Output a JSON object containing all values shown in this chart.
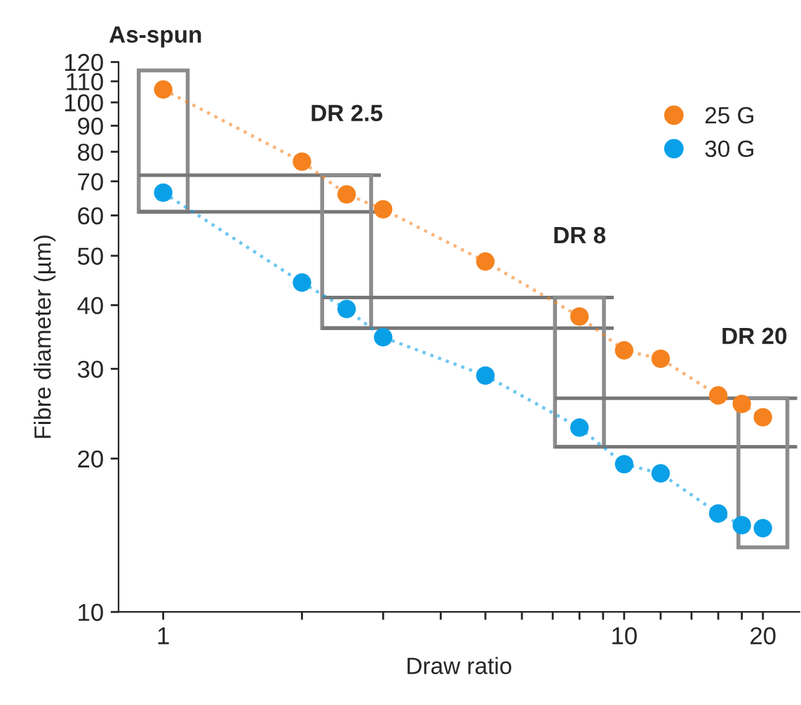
{
  "chart_data": {
    "type": "line",
    "xlabel": "Draw ratio",
    "ylabel": "Fibre diameter (µm)",
    "annotations": [
      "As-spun",
      "DR 2.5",
      "DR 8",
      "DR 20"
    ],
    "x": [
      1,
      2,
      2.5,
      3,
      5,
      8,
      10,
      12,
      16,
      18,
      20
    ],
    "series": [
      {
        "name": "25 G",
        "color": "#f5821f",
        "values": [
          106,
          76.5,
          66,
          61.7,
          48.7,
          38,
          32.6,
          31.4,
          26.6,
          25.6,
          24.1
        ]
      },
      {
        "name": "30 G",
        "color": "#0aa0e8",
        "values": [
          66.5,
          44.3,
          39.3,
          34.6,
          29.1,
          23,
          19.5,
          18.7,
          15.6,
          14.8,
          14.6
        ]
      }
    ],
    "log": "xy",
    "line_style": "dotted",
    "marker": "circle",
    "xlim": [
      0.8,
      24
    ],
    "ylim": [
      10,
      120
    ],
    "xticks": [
      1,
      {
        "value": 2,
        "label": null
      },
      {
        "value": 3,
        "label": null
      },
      {
        "value": 4,
        "label": null
      },
      {
        "value": 5,
        "label": null
      },
      {
        "value": 6,
        "label": null
      },
      {
        "value": 7,
        "label": null
      },
      {
        "value": 8,
        "label": null
      },
      {
        "value": 9,
        "label": null
      },
      10,
      {
        "value": 12,
        "label": null
      },
      {
        "value": 14,
        "label": null
      },
      {
        "value": 16,
        "label": null
      },
      {
        "value": 18,
        "label": null
      },
      20
    ],
    "yticks": [
      10,
      20,
      30,
      40,
      50,
      60,
      70,
      80,
      90,
      100,
      110,
      120
    ],
    "legend": "top right",
    "grid": false
  }
}
